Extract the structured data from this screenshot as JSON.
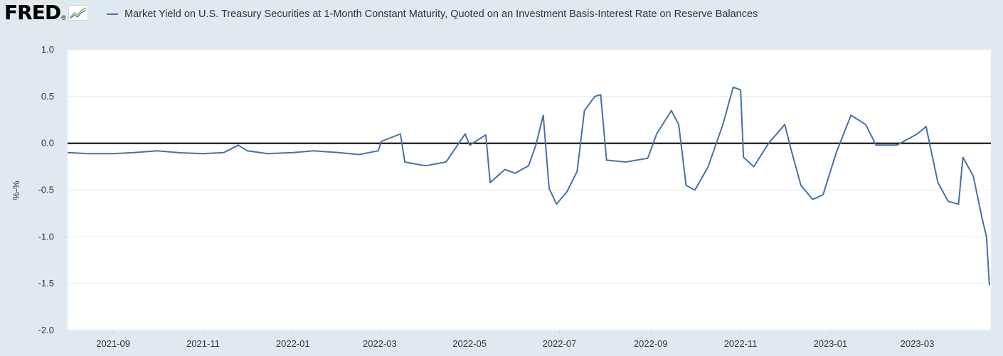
{
  "header": {
    "logo_text": "FRED",
    "logo_mark": "®"
  },
  "chart_data": {
    "type": "line",
    "title": "",
    "xlabel": "",
    "ylabel": "%-%",
    "ylim": [
      -2.0,
      1.0
    ],
    "xlim": [
      "2021-08-01",
      "2023-04-20"
    ],
    "grid": true,
    "legend_position": "top",
    "y_ticks": [
      "1.0",
      "0.5",
      "0.0",
      "-0.5",
      "-1.0",
      "-1.5",
      "-2.0"
    ],
    "x_ticks": [
      "2021-09",
      "2021-11",
      "2022-01",
      "2022-03",
      "2022-05",
      "2022-07",
      "2022-09",
      "2022-11",
      "2023-01",
      "2023-03"
    ],
    "zero_line": true,
    "series": [
      {
        "name": "Market Yield on U.S. Treasury Securities at 1-Month Constant Maturity, Quoted on an Investment Basis-Interest Rate on Reserve Balances",
        "color": "#4572a7",
        "points": [
          [
            "2021-08-01",
            -0.1
          ],
          [
            "2021-08-15",
            -0.11
          ],
          [
            "2021-09-01",
            -0.11
          ],
          [
            "2021-09-15",
            -0.1
          ],
          [
            "2021-10-01",
            -0.08
          ],
          [
            "2021-10-15",
            -0.1
          ],
          [
            "2021-11-01",
            -0.11
          ],
          [
            "2021-11-15",
            -0.1
          ],
          [
            "2021-11-25",
            -0.02
          ],
          [
            "2021-12-01",
            -0.08
          ],
          [
            "2021-12-15",
            -0.11
          ],
          [
            "2022-01-01",
            -0.1
          ],
          [
            "2022-01-15",
            -0.08
          ],
          [
            "2022-02-01",
            -0.1
          ],
          [
            "2022-02-15",
            -0.12
          ],
          [
            "2022-02-28",
            -0.08
          ],
          [
            "2022-03-02",
            0.02
          ],
          [
            "2022-03-15",
            0.1
          ],
          [
            "2022-03-18",
            -0.2
          ],
          [
            "2022-04-01",
            -0.24
          ],
          [
            "2022-04-15",
            -0.2
          ],
          [
            "2022-04-28",
            0.1
          ],
          [
            "2022-05-01",
            -0.02
          ],
          [
            "2022-05-12",
            0.09
          ],
          [
            "2022-05-15",
            -0.42
          ],
          [
            "2022-05-25",
            -0.28
          ],
          [
            "2022-06-01",
            -0.32
          ],
          [
            "2022-06-10",
            -0.24
          ],
          [
            "2022-06-15",
            -0.02
          ],
          [
            "2022-06-20",
            0.3
          ],
          [
            "2022-06-24",
            -0.48
          ],
          [
            "2022-06-29",
            -0.65
          ],
          [
            "2022-07-06",
            -0.52
          ],
          [
            "2022-07-13",
            -0.3
          ],
          [
            "2022-07-18",
            0.35
          ],
          [
            "2022-07-25",
            0.5
          ],
          [
            "2022-07-29",
            0.52
          ],
          [
            "2022-08-02",
            -0.18
          ],
          [
            "2022-08-15",
            -0.2
          ],
          [
            "2022-08-30",
            -0.16
          ],
          [
            "2022-09-05",
            0.1
          ],
          [
            "2022-09-15",
            0.35
          ],
          [
            "2022-09-20",
            0.2
          ],
          [
            "2022-09-25",
            -0.45
          ],
          [
            "2022-10-01",
            -0.5
          ],
          [
            "2022-10-10",
            -0.25
          ],
          [
            "2022-10-20",
            0.2
          ],
          [
            "2022-10-27",
            0.6
          ],
          [
            "2022-11-01",
            0.57
          ],
          [
            "2022-11-03",
            -0.15
          ],
          [
            "2022-11-10",
            -0.25
          ],
          [
            "2022-11-20",
            0.0
          ],
          [
            "2022-12-01",
            0.2
          ],
          [
            "2022-12-05",
            -0.05
          ],
          [
            "2022-12-12",
            -0.45
          ],
          [
            "2022-12-20",
            -0.6
          ],
          [
            "2022-12-27",
            -0.55
          ],
          [
            "2023-01-05",
            -0.1
          ],
          [
            "2023-01-15",
            0.3
          ],
          [
            "2023-01-25",
            0.2
          ],
          [
            "2023-02-01",
            -0.02
          ],
          [
            "2023-02-15",
            -0.02
          ],
          [
            "2023-03-01",
            0.1
          ],
          [
            "2023-03-07",
            0.18
          ],
          [
            "2023-03-10",
            -0.05
          ],
          [
            "2023-03-15",
            -0.42
          ],
          [
            "2023-03-22",
            -0.62
          ],
          [
            "2023-03-29",
            -0.65
          ],
          [
            "2023-04-01",
            -0.15
          ],
          [
            "2023-04-08",
            -0.35
          ],
          [
            "2023-04-14",
            -0.8
          ],
          [
            "2023-04-17",
            -1.0
          ],
          [
            "2023-04-19",
            -1.52
          ]
        ]
      }
    ]
  }
}
